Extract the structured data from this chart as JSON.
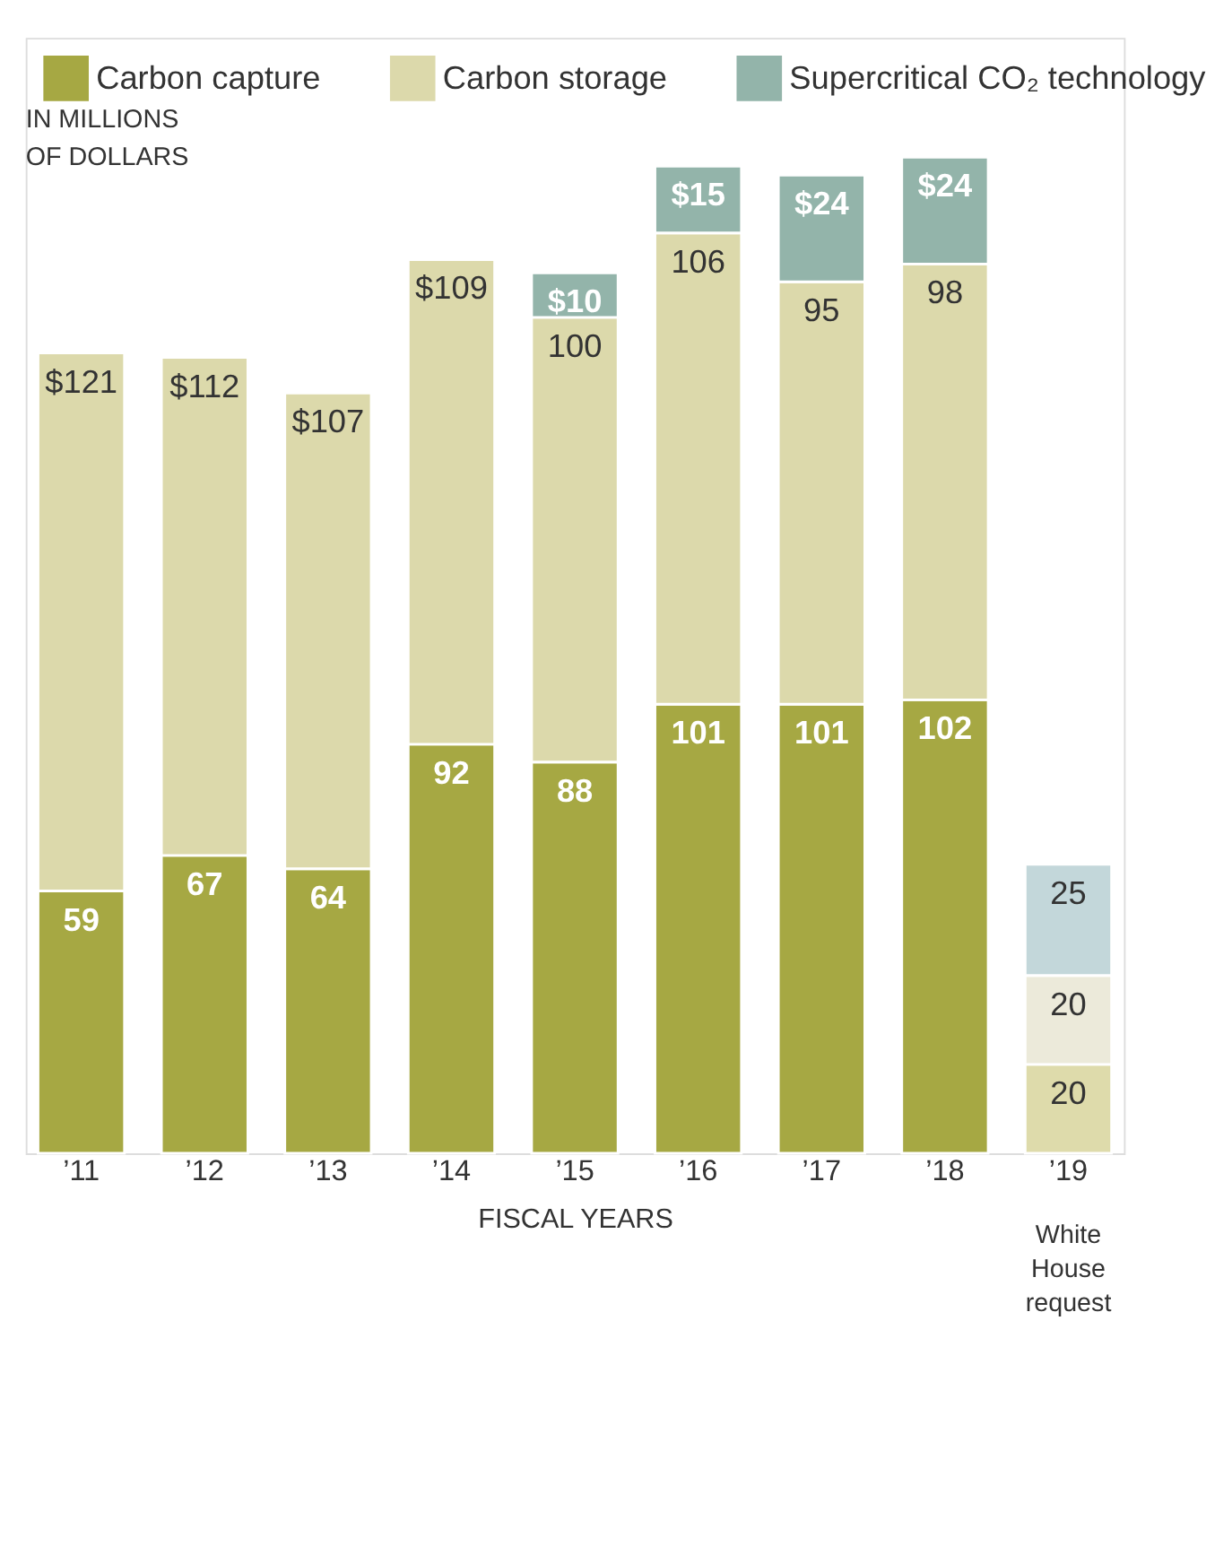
{
  "chart_data": {
    "type": "bar",
    "stacked": true,
    "xlabel": "FISCAL YEARS",
    "legend": "top left",
    "grid": false,
    "categories": [
      "’11",
      "’12",
      "’13",
      "’14",
      "’15",
      "’16",
      "’17",
      "’18",
      "’19"
    ],
    "series": [
      {
        "name": "Carbon capture",
        "color": "#a6a843",
        "colors": [
          "#a6a843",
          "#a6a843",
          "#a6a843",
          "#a6a843",
          "#a6a843",
          "#a6a843",
          "#a6a843",
          "#a6a843",
          "#dedbab"
        ],
        "values": [
          59,
          67,
          64,
          92,
          88,
          101,
          101,
          102,
          20
        ],
        "value_labels": [
          "59",
          "67",
          "64",
          "92",
          "88",
          "101",
          "101",
          "102",
          "20"
        ]
      },
      {
        "name": "Carbon storage",
        "color": "#dcd9ab",
        "colors": [
          "#dcd9ab",
          "#dcd9ab",
          "#dcd9ab",
          "#dcd9ab",
          "#dcd9ab",
          "#dcd9ab",
          "#dcd9ab",
          "#dcd9ab",
          "#eceada"
        ],
        "values": [
          121,
          112,
          107,
          109,
          100,
          106,
          95,
          98,
          20
        ],
        "value_labels": [
          "$121",
          "$112",
          "$107",
          "$109",
          "100",
          "106",
          "95",
          "98",
          "20"
        ]
      },
      {
        "name": "Supercritical CO₂ technology",
        "color": "#93b4aa",
        "colors": [
          null,
          null,
          null,
          null,
          "#93b4aa",
          "#93b4aa",
          "#93b4aa",
          "#93b4aa",
          "#c3d7da"
        ],
        "values": [
          null,
          null,
          null,
          null,
          10,
          15,
          24,
          24,
          25
        ],
        "value_labels": [
          null,
          null,
          null,
          null,
          "$10",
          "$15",
          "$24",
          "$24",
          "25"
        ]
      }
    ],
    "annotations": [
      "IN MILLIONS OF DOLLARS",
      "White House request"
    ]
  }
}
